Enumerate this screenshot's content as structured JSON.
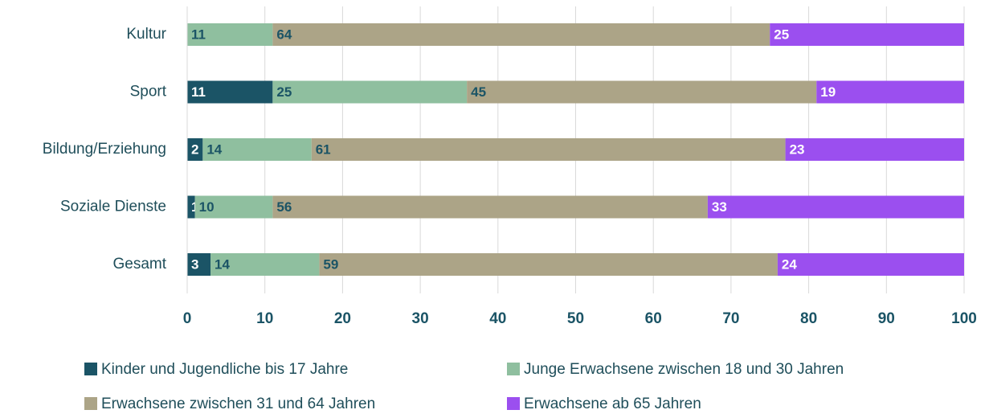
{
  "chart_data": {
    "type": "stacked_barh",
    "categories": [
      "Kultur",
      "Sport",
      "Bildung/Erziehung",
      "Soziale Dienste",
      "Gesamt"
    ],
    "series": [
      {
        "name": "Kinder und Jugendliche bis 17 Jahre",
        "color": "#1b5466",
        "label_color": "#ffffff",
        "values": [
          0,
          11,
          2,
          1,
          3
        ]
      },
      {
        "name": "Junge Erwachsene zwischen 18 und 30 Jahren",
        "color": "#8fbf9f",
        "label_color": "#1b5466",
        "values": [
          11,
          25,
          14,
          10,
          14
        ]
      },
      {
        "name": "Erwachsene zwischen 31 und 64 Jahren",
        "color": "#aca487",
        "label_color": "#1b5466",
        "values": [
          64,
          45,
          61,
          56,
          59
        ]
      },
      {
        "name": "Erwachsene ab 65 Jahren",
        "color": "#9b4fef",
        "label_color": "#ffffff",
        "values": [
          25,
          19,
          23,
          33,
          24
        ]
      }
    ],
    "xlim": [
      0,
      100
    ],
    "xticks": [
      0,
      10,
      20,
      30,
      40,
      50,
      60,
      70,
      80,
      90,
      100
    ],
    "grid": true,
    "legend": "bottom"
  }
}
